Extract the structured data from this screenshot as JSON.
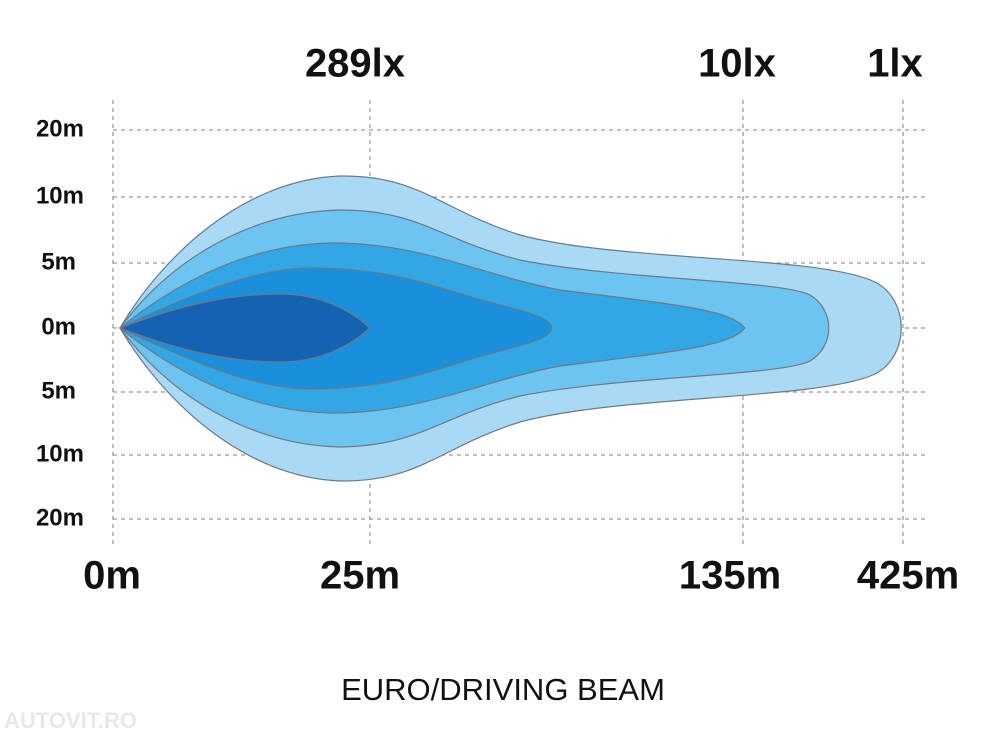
{
  "lux_labels": [
    "289lx",
    "10lx",
    "1lx"
  ],
  "y_labels": [
    "20m",
    "10m",
    "5m",
    "0m",
    "5m",
    "10m",
    "20m"
  ],
  "x_labels": [
    "0m",
    "25m",
    "135m",
    "425m"
  ],
  "caption": "EURO/DRIVING BEAM",
  "watermark": "AUTOVIT.RO"
}
